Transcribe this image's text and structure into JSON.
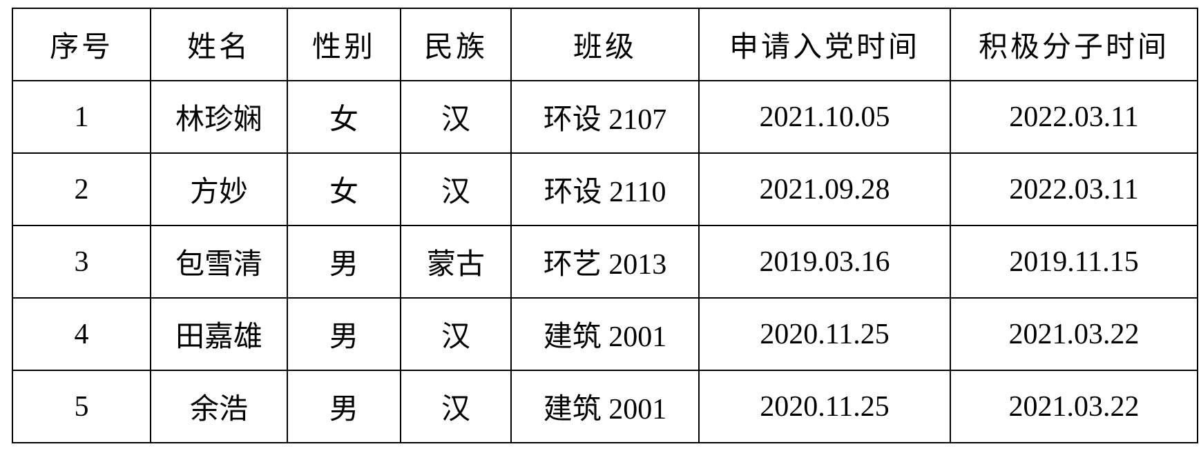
{
  "table": {
    "headers": [
      "序号",
      "姓名",
      "性别",
      "民族",
      "班级",
      "申请入党时间",
      "积极分子时间"
    ],
    "rows": [
      [
        "1",
        "林珍娴",
        "女",
        "汉",
        "环设 2107",
        "2021.10.05",
        "2022.03.11"
      ],
      [
        "2",
        "方妙",
        "女",
        "汉",
        "环设 2110",
        "2021.09.28",
        "2022.03.11"
      ],
      [
        "3",
        "包雪清",
        "男",
        "蒙古",
        "环艺 2013",
        "2019.03.16",
        "2019.11.15"
      ],
      [
        "4",
        "田嘉雄",
        "男",
        "汉",
        "建筑 2001",
        "2020.11.25",
        "2021.03.22"
      ],
      [
        "5",
        "余浩",
        "男",
        "汉",
        "建筑 2001",
        "2020.11.25",
        "2021.03.22"
      ]
    ]
  }
}
